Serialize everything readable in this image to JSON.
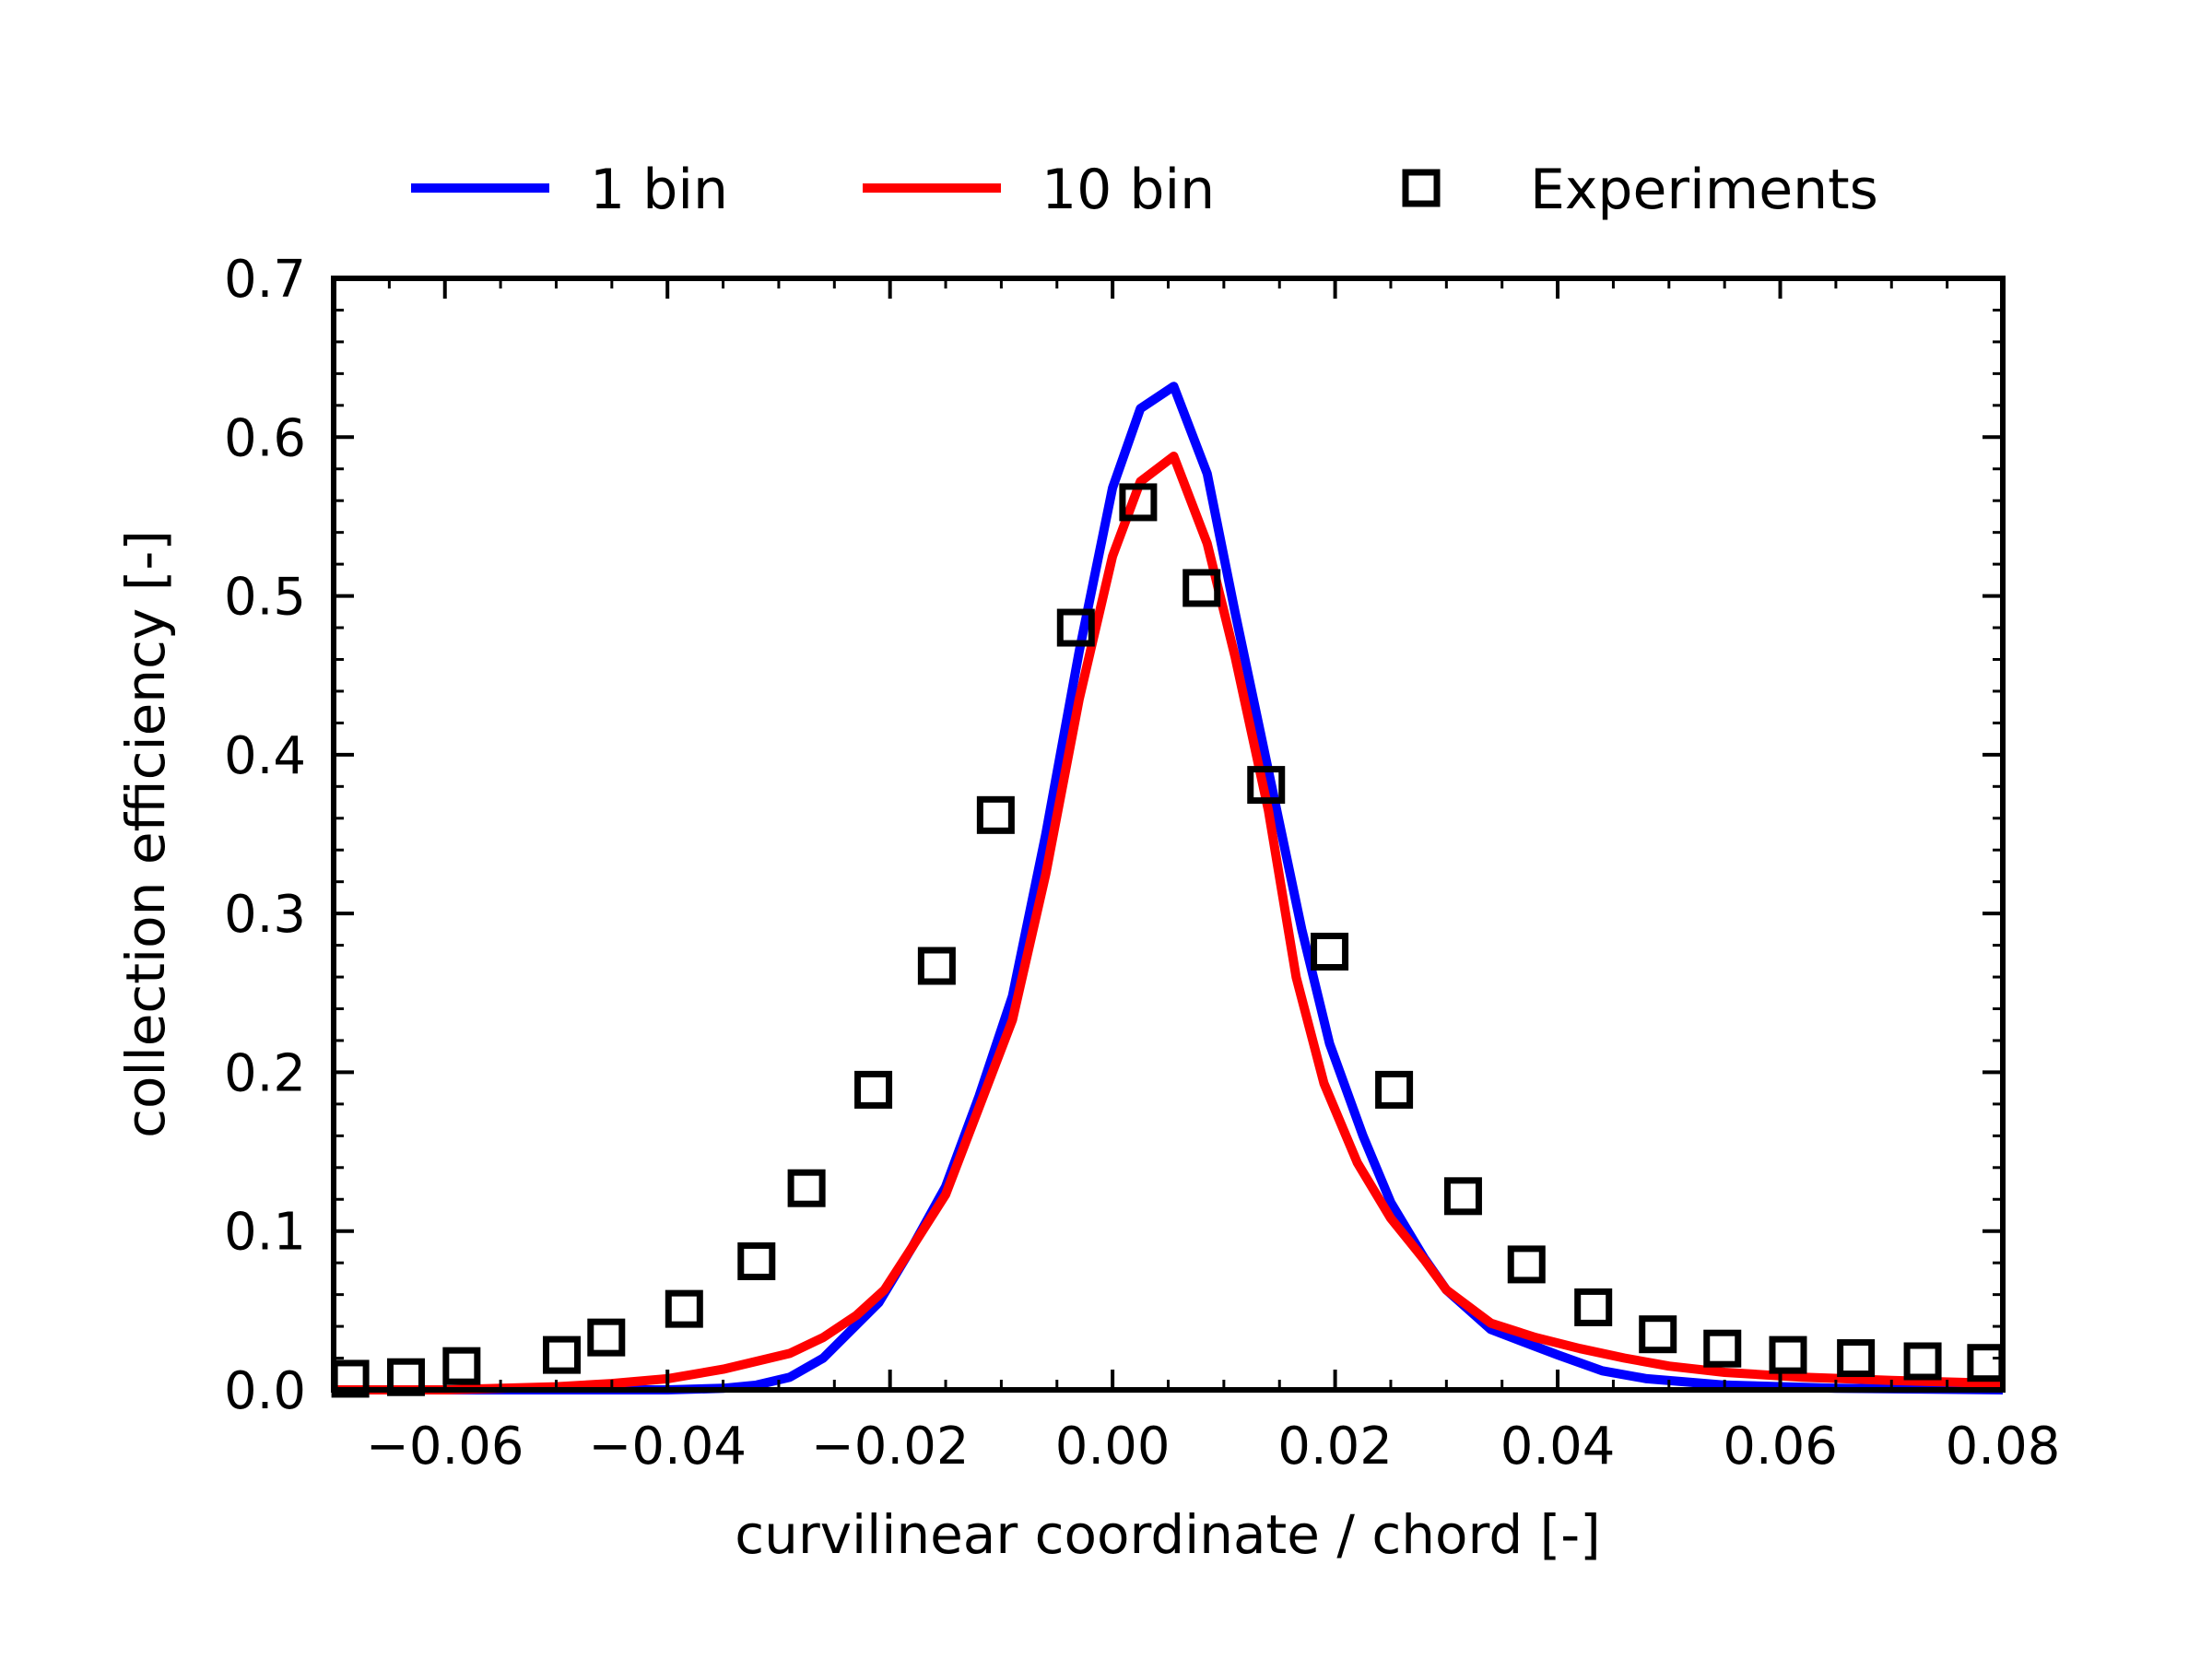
{
  "chart_data": {
    "type": "line",
    "xlabel": "curvilinear coordinate / chord [-]",
    "ylabel": "collection efficiency [-]",
    "xlim": [
      -0.07,
      0.08
    ],
    "ylim": [
      0.0,
      0.7
    ],
    "grid": false,
    "legend_placement": "top",
    "x_ticks": [
      -0.06,
      -0.04,
      -0.02,
      0.0,
      0.02,
      0.04,
      0.06,
      0.08
    ],
    "x_tick_labels": [
      "−0.06",
      "−0.04",
      "−0.02",
      "0.00",
      "0.02",
      "0.04",
      "0.06",
      "0.08"
    ],
    "y_ticks": [
      0.0,
      0.1,
      0.2,
      0.3,
      0.4,
      0.5,
      0.6,
      0.7
    ],
    "y_tick_labels": [
      "0.0",
      "0.1",
      "0.2",
      "0.3",
      "0.4",
      "0.5",
      "0.6",
      "0.7"
    ],
    "series": [
      {
        "name": "1 bin",
        "kind": "line",
        "color": "#0000ff",
        "x": [
          -0.07,
          -0.05,
          -0.04,
          -0.035,
          -0.032,
          -0.029,
          -0.026,
          -0.021,
          -0.018,
          -0.015,
          -0.012,
          -0.009,
          -0.006,
          -0.003,
          0.0,
          0.0025,
          0.0055,
          0.0085,
          0.011,
          0.014,
          0.017,
          0.0195,
          0.0225,
          0.025,
          0.028,
          0.03,
          0.034,
          0.037,
          0.04,
          0.044,
          0.048,
          0.055,
          0.065,
          0.08
        ],
        "y": [
          0.0,
          0.0,
          0.0,
          0.001,
          0.003,
          0.008,
          0.02,
          0.055,
          0.09,
          0.128,
          0.185,
          0.248,
          0.35,
          0.465,
          0.568,
          0.618,
          0.632,
          0.577,
          0.49,
          0.39,
          0.29,
          0.218,
          0.16,
          0.118,
          0.083,
          0.063,
          0.038,
          0.03,
          0.022,
          0.012,
          0.007,
          0.003,
          0.001,
          0.0
        ]
      },
      {
        "name": "10 bin",
        "kind": "line",
        "color": "#ff0000",
        "x": [
          -0.07,
          -0.06,
          -0.05,
          -0.045,
          -0.04,
          -0.035,
          -0.032,
          -0.029,
          -0.026,
          -0.023,
          -0.0205,
          -0.018,
          -0.015,
          -0.012,
          -0.009,
          -0.006,
          -0.003,
          0.0,
          0.0025,
          0.0055,
          0.0085,
          0.011,
          0.014,
          0.0165,
          0.019,
          0.022,
          0.025,
          0.028,
          0.03,
          0.034,
          0.038,
          0.042,
          0.046,
          0.05,
          0.055,
          0.062,
          0.07,
          0.08
        ],
        "y": [
          0.0,
          0.0,
          0.002,
          0.004,
          0.007,
          0.013,
          0.018,
          0.023,
          0.033,
          0.047,
          0.063,
          0.09,
          0.123,
          0.178,
          0.233,
          0.325,
          0.435,
          0.525,
          0.572,
          0.588,
          0.533,
          0.462,
          0.365,
          0.26,
          0.193,
          0.143,
          0.108,
          0.082,
          0.063,
          0.042,
          0.033,
          0.026,
          0.02,
          0.015,
          0.011,
          0.008,
          0.006,
          0.004
        ]
      },
      {
        "name": "Experiments",
        "kind": "scatter",
        "marker": "square-open",
        "color": "#000000",
        "x": [
          -0.0685,
          -0.0635,
          -0.0585,
          -0.0495,
          -0.0455,
          -0.0385,
          -0.032,
          -0.0275,
          -0.0215,
          -0.0158,
          -0.0105,
          -0.0033,
          0.0023,
          0.008,
          0.0138,
          0.0195,
          0.0253,
          0.0315,
          0.0372,
          0.0432,
          0.049,
          0.0548,
          0.0607,
          0.0668,
          0.0728,
          0.0785
        ],
        "y": [
          0.007,
          0.008,
          0.015,
          0.022,
          0.033,
          0.051,
          0.081,
          0.127,
          0.189,
          0.267,
          0.362,
          0.48,
          0.559,
          0.505,
          0.381,
          0.276,
          0.189,
          0.122,
          0.079,
          0.052,
          0.035,
          0.026,
          0.022,
          0.02,
          0.018,
          0.017
        ]
      }
    ]
  }
}
